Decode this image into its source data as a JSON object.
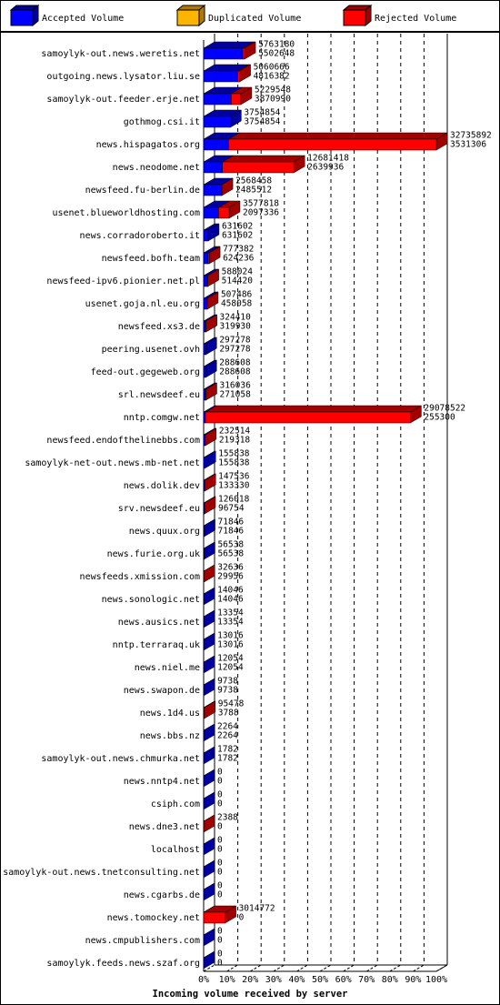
{
  "chart_data": {
    "type": "bar",
    "xlabel": "Incoming volume received by server",
    "categories": [
      "samoylyk-out.news.weretis.net",
      "outgoing.news.lysator.liu.se",
      "samoylyk-out.feeder.erje.net",
      "gothmog.csi.it",
      "news.hispagatos.org",
      "news.neodome.net",
      "newsfeed.fu-berlin.de",
      "usenet.blueworldhosting.com",
      "news.corradoroberto.it",
      "newsfeed.bofh.team",
      "newsfeed-ipv6.pionier.net.pl",
      "usenet.goja.nl.eu.org",
      "newsfeed.xs3.de",
      "peering.usenet.ovh",
      "feed-out.gegeweb.org",
      "srl.newsdeef.eu",
      "nntp.comgw.net",
      "newsfeed.endofthelinebbs.com",
      "samoylyk-net-out.news.mb-net.net",
      "news.dolik.dev",
      "srv.newsdeef.eu",
      "news.quux.org",
      "news.furie.org.uk",
      "newsfeeds.xmission.com",
      "news.sonologic.net",
      "news.ausics.net",
      "nntp.terraraq.uk",
      "news.niel.me",
      "news.swapon.de",
      "news.1d4.us",
      "news.bbs.nz",
      "samoylyk-out.news.chmurka.net",
      "news.nntp4.net",
      "csiph.com",
      "news.dne3.net",
      "localhost",
      "samoylyk-out.news.tnetconsulting.net",
      "news.cgarbs.de",
      "news.tomockey.net",
      "news.cmpublishers.com",
      "samoylyk.feeds.news.szaf.org"
    ],
    "totals": [
      5763180,
      5060666,
      5229548,
      3754854,
      32735892,
      12681418,
      2568458,
      3577818,
      631602,
      777382,
      588024,
      507486,
      324410,
      297278,
      288608,
      316036,
      29078522,
      232514,
      155838,
      147536,
      126018,
      71846,
      56538,
      32636,
      14046,
      13354,
      13016,
      12054,
      9738,
      95478,
      2264,
      1782,
      0,
      0,
      2388,
      0,
      0,
      0,
      3014772,
      0,
      0
    ],
    "series": [
      {
        "name": "Accepted Volume",
        "color": "#0000ff",
        "values": [
          5502648,
          4816382,
          3870990,
          3754854,
          3531306,
          2639936,
          2485512,
          2097336,
          631602,
          624236,
          514420,
          458058,
          319930,
          297278,
          288608,
          271058,
          255300,
          219318,
          155838,
          133330,
          96754,
          71846,
          56538,
          29956,
          14046,
          13354,
          13016,
          12054,
          9738,
          3788,
          2264,
          1782,
          0,
          0,
          0,
          0,
          0,
          0,
          0,
          0,
          0
        ]
      },
      {
        "name": "Duplicated Volume",
        "color": "#ffb400"
      },
      {
        "name": "Rejected Volume",
        "color": "#ff0000"
      }
    ],
    "xlim": [
      0,
      32735892
    ],
    "xticks": [
      {
        "value": 0,
        "label": "0%"
      },
      {
        "value": 3273589.2,
        "label": "10%"
      },
      {
        "value": 6547178.4,
        "label": "20%"
      },
      {
        "value": 9820767.6,
        "label": "30%"
      },
      {
        "value": 13094356.8,
        "label": "40%"
      },
      {
        "value": 16367946,
        "label": "50%"
      },
      {
        "value": 19641535.2,
        "label": "60%"
      },
      {
        "value": 22915124.4,
        "label": "70%"
      },
      {
        "value": 26188713.6,
        "label": "80%"
      },
      {
        "value": 29462302.8,
        "label": "90%"
      },
      {
        "value": 32735892,
        "label": "100%"
      }
    ],
    "grid": true
  }
}
